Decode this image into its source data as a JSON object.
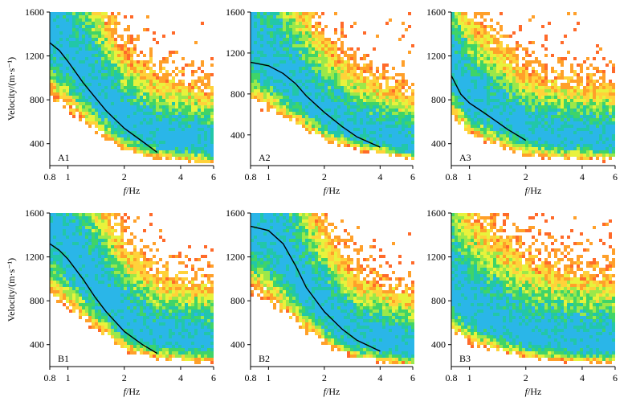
{
  "chart_data": [
    {
      "type": "heatmap",
      "panel_label": "A1",
      "xlabel_italic": "f",
      "xlabel_rest": "/Hz",
      "ylabel": "Velocity/(m·s⁻¹)",
      "xscale": "log",
      "xlim": [
        0.8,
        6
      ],
      "ylim": [
        200,
        1600
      ],
      "xticks": [
        {
          "v": 0.8,
          "label": "0.8"
        },
        {
          "v": 1,
          "label": "1"
        },
        {
          "v": 2,
          "label": "2"
        },
        {
          "v": 4,
          "label": "4"
        },
        {
          "v": 6,
          "label": "6"
        }
      ],
      "yticks": [
        {
          "v": 400,
          "label": "400"
        },
        {
          "v": 800,
          "label": "800"
        },
        {
          "v": 1200,
          "label": "1200"
        },
        {
          "v": 1600,
          "label": "1600"
        }
      ],
      "ridge": [
        [
          0.8,
          1400
        ],
        [
          1.0,
          1200
        ],
        [
          1.5,
          820
        ],
        [
          2.0,
          560
        ],
        [
          3.0,
          450
        ],
        [
          6.0,
          370
        ]
      ],
      "spread": 1.0,
      "curve": {
        "x": [
          0.8,
          0.9,
          1.0,
          1.2,
          1.4,
          1.6,
          2.0,
          2.5,
          3.0
        ],
        "y": [
          1320,
          1250,
          1150,
          960,
          820,
          700,
          540,
          420,
          320
        ]
      }
    },
    {
      "type": "heatmap",
      "panel_label": "A2",
      "xlabel_italic": "f",
      "xlabel_rest": "/Hz",
      "ylabel": "",
      "xscale": "log",
      "xlim": [
        0.8,
        6
      ],
      "ylim": [
        100,
        1600
      ],
      "xticks": [
        {
          "v": 0.8,
          "label": "0.8"
        },
        {
          "v": 1,
          "label": "1"
        },
        {
          "v": 2,
          "label": "2"
        },
        {
          "v": 4,
          "label": "4"
        },
        {
          "v": 6,
          "label": "6"
        }
      ],
      "yticks": [
        {
          "v": 400,
          "label": "400"
        },
        {
          "v": 800,
          "label": "800"
        },
        {
          "v": 1200,
          "label": "1200"
        },
        {
          "v": 1600,
          "label": "1600"
        }
      ],
      "ridge": [
        [
          0.8,
          1250
        ],
        [
          1.0,
          1100
        ],
        [
          1.5,
          800
        ],
        [
          2.0,
          580
        ],
        [
          3.0,
          420
        ],
        [
          6.0,
          280
        ]
      ],
      "spread": 1.1,
      "curve": {
        "x": [
          0.8,
          1.0,
          1.2,
          1.4,
          1.6,
          2.0,
          2.5,
          3.0,
          4.0
        ],
        "y": [
          1110,
          1075,
          1000,
          900,
          780,
          620,
          480,
          380,
          280
        ]
      }
    },
    {
      "type": "heatmap",
      "panel_label": "A3",
      "xlabel_italic": "f",
      "xlabel_rest": "/Hz",
      "ylabel": "",
      "xscale": "log",
      "xlim": [
        0.8,
        6
      ],
      "ylim": [
        200,
        1600
      ],
      "xticks": [
        {
          "v": 0.8,
          "label": "0.8"
        },
        {
          "v": 1,
          "label": "1"
        },
        {
          "v": 2,
          "label": "2"
        },
        {
          "v": 4,
          "label": "4"
        },
        {
          "v": 6,
          "label": "6"
        }
      ],
      "yticks": [
        {
          "v": 400,
          "label": "400"
        },
        {
          "v": 800,
          "label": "800"
        },
        {
          "v": 1200,
          "label": "1200"
        },
        {
          "v": 1600,
          "label": "1600"
        }
      ],
      "ridge": [
        [
          0.8,
          1100
        ],
        [
          1.0,
          800
        ],
        [
          1.5,
          620
        ],
        [
          2.0,
          500
        ],
        [
          3.0,
          450
        ],
        [
          6.0,
          420
        ]
      ],
      "spread": 0.9,
      "curve": {
        "x": [
          0.8,
          0.9,
          1.0,
          1.2,
          1.4,
          1.6,
          2.0
        ],
        "y": [
          1020,
          850,
          770,
          680,
          600,
          530,
          430
        ]
      }
    },
    {
      "type": "heatmap",
      "panel_label": "B1",
      "xlabel_italic": "f",
      "xlabel_rest": "/Hz",
      "ylabel": "Velocity/(m·s⁻¹)",
      "xscale": "log",
      "xlim": [
        0.8,
        6
      ],
      "ylim": [
        200,
        1600
      ],
      "xticks": [
        {
          "v": 0.8,
          "label": "0.8"
        },
        {
          "v": 1,
          "label": "1"
        },
        {
          "v": 2,
          "label": "2"
        },
        {
          "v": 4,
          "label": "4"
        },
        {
          "v": 6,
          "label": "6"
        }
      ],
      "yticks": [
        {
          "v": 400,
          "label": "400"
        },
        {
          "v": 800,
          "label": "800"
        },
        {
          "v": 1200,
          "label": "1200"
        },
        {
          "v": 1600,
          "label": "1600"
        }
      ],
      "ridge": [
        [
          0.8,
          1450
        ],
        [
          1.0,
          1250
        ],
        [
          1.5,
          850
        ],
        [
          2.0,
          600
        ],
        [
          3.0,
          450
        ],
        [
          6.0,
          400
        ]
      ],
      "spread": 1.0,
      "curve": {
        "x": [
          0.8,
          0.9,
          1.0,
          1.2,
          1.4,
          1.6,
          2.0,
          2.5,
          3.0
        ],
        "y": [
          1320,
          1260,
          1180,
          1000,
          830,
          700,
          520,
          400,
          320
        ]
      }
    },
    {
      "type": "heatmap",
      "panel_label": "B2",
      "xlabel_italic": "f",
      "xlabel_rest": "/Hz",
      "ylabel": "",
      "xscale": "log",
      "xlim": [
        0.8,
        6
      ],
      "ylim": [
        200,
        1600
      ],
      "xticks": [
        {
          "v": 0.8,
          "label": "0.8"
        },
        {
          "v": 1,
          "label": "1"
        },
        {
          "v": 2,
          "label": "2"
        },
        {
          "v": 4,
          "label": "4"
        },
        {
          "v": 6,
          "label": "6"
        }
      ],
      "yticks": [
        {
          "v": 400,
          "label": "400"
        },
        {
          "v": 800,
          "label": "800"
        },
        {
          "v": 1200,
          "label": "1200"
        },
        {
          "v": 1600,
          "label": "1600"
        }
      ],
      "ridge": [
        [
          0.8,
          1500
        ],
        [
          1.0,
          1380
        ],
        [
          1.5,
          950
        ],
        [
          2.0,
          680
        ],
        [
          3.0,
          450
        ],
        [
          6.0,
          350
        ]
      ],
      "spread": 1.0,
      "curve": {
        "x": [
          0.8,
          1.0,
          1.2,
          1.4,
          1.6,
          2.0,
          2.5,
          3.0,
          4.0
        ],
        "y": [
          1480,
          1440,
          1320,
          1120,
          920,
          700,
          540,
          440,
          340
        ]
      }
    },
    {
      "type": "heatmap",
      "panel_label": "B3",
      "xlabel_italic": "f",
      "xlabel_rest": "/Hz",
      "ylabel": "",
      "xscale": "log",
      "xlim": [
        0.8,
        6
      ],
      "ylim": [
        200,
        1600
      ],
      "xticks": [
        {
          "v": 0.8,
          "label": "0.8"
        },
        {
          "v": 1,
          "label": "1"
        },
        {
          "v": 2,
          "label": "2"
        },
        {
          "v": 4,
          "label": "4"
        },
        {
          "v": 6,
          "label": "6"
        }
      ],
      "yticks": [
        {
          "v": 400,
          "label": "400"
        },
        {
          "v": 800,
          "label": "800"
        },
        {
          "v": 1200,
          "label": "1200"
        },
        {
          "v": 1600,
          "label": "1600"
        }
      ],
      "ridge": [
        [
          0.8,
          900
        ],
        [
          1.0,
          700
        ],
        [
          1.5,
          550
        ],
        [
          2.0,
          470
        ],
        [
          3.0,
          420
        ],
        [
          6.0,
          380
        ]
      ],
      "spread": 1.2,
      "curve": null
    }
  ],
  "colors": {
    "background": "#ffffff",
    "colormap": [
      "#ff3b2f",
      "#ff6a2a",
      "#ffa02a",
      "#ffd23a",
      "#e8f23c",
      "#9be84a",
      "#3fd468",
      "#22c7a8",
      "#2ab6e8"
    ],
    "curve": "#000000"
  }
}
